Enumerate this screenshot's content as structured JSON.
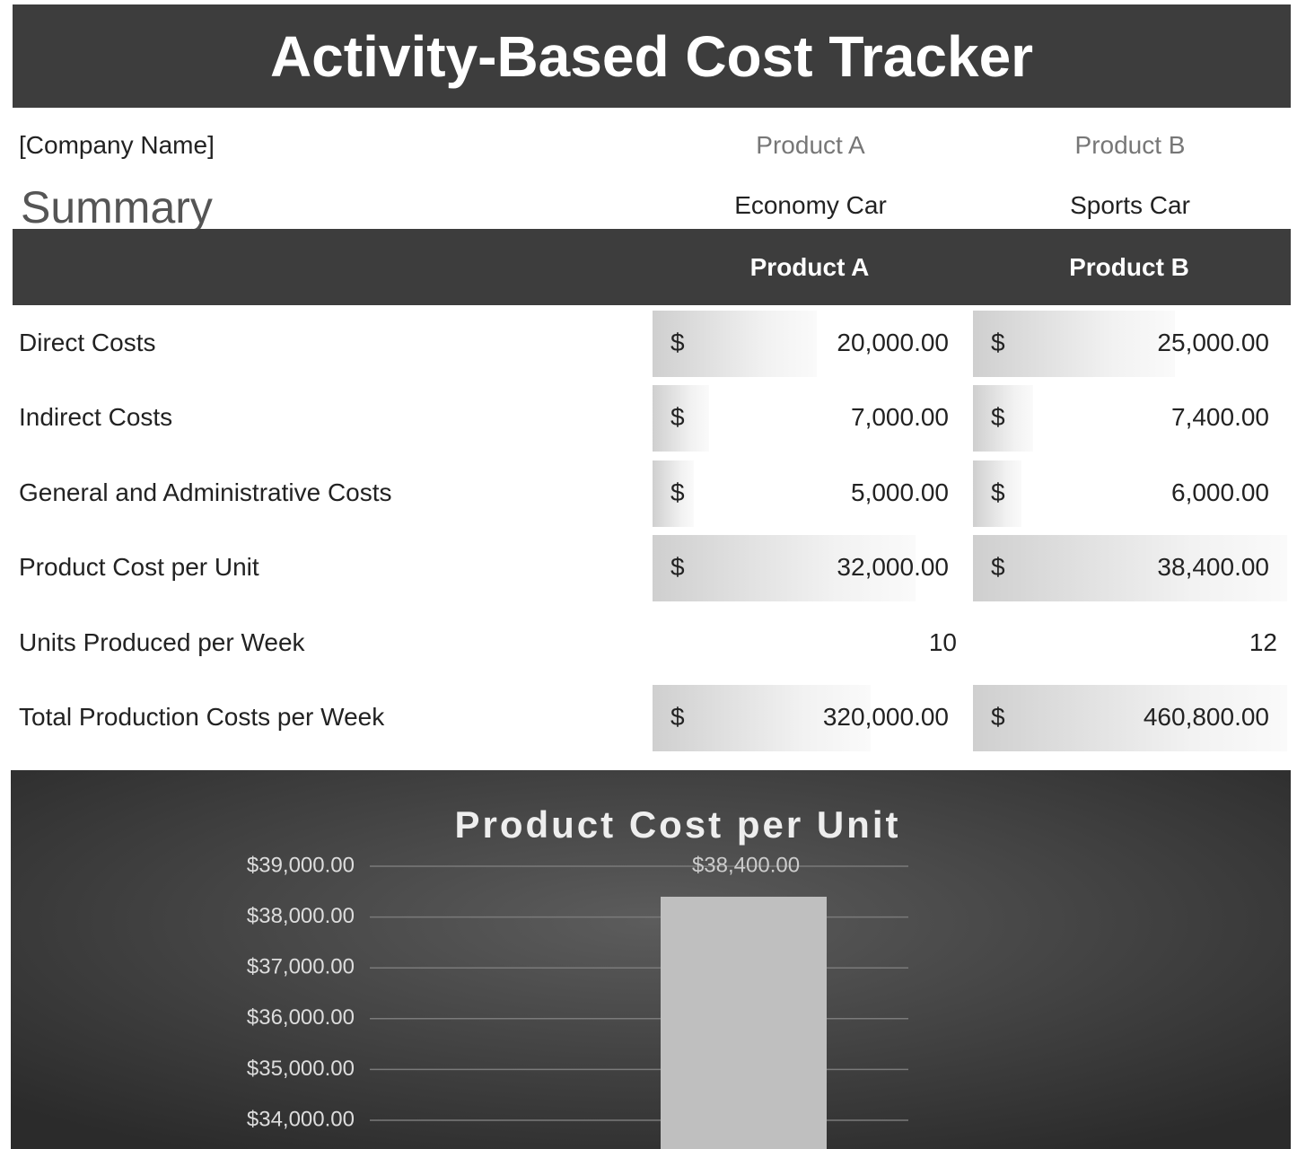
{
  "header": {
    "title": "Activity-Based Cost Tracker"
  },
  "company": "[Company Name]",
  "section": "Summary",
  "products": [
    {
      "label": "Product A",
      "name": "Economy Car"
    },
    {
      "label": "Product B",
      "name": "Sports Car"
    }
  ],
  "table": {
    "columns": [
      null,
      "Product A",
      "Product B"
    ],
    "rows": [
      [
        "Direct Costs",
        "$",
        "20,000.00",
        "$",
        "25,000.00"
      ],
      [
        "Indirect Costs",
        "$",
        "7,000.00",
        "$",
        "7,400.00"
      ],
      [
        "General and Administrative Costs",
        "$",
        "5,000.00",
        "$",
        "6,000.00"
      ],
      [
        "Product Cost per Unit",
        "$",
        "32,000.00",
        "$",
        "38,400.00"
      ],
      [
        "Units Produced per Week",
        null,
        "10",
        null,
        "12"
      ],
      [
        "Total Production Costs per Week",
        "$",
        "320,000.00",
        "$",
        "460,800.00"
      ]
    ]
  },
  "chart_data": {
    "type": "bar",
    "title": "Product Cost per Unit",
    "categories": [
      null
    ],
    "values": [
      38400
    ],
    "value_labels": [
      "$38,400.00"
    ],
    "color": "#bfbfbf",
    "ylim": [
      33435,
      39000
    ],
    "yticks": [
      {
        "value": 34000,
        "label": "$34,000.00"
      },
      {
        "value": 35000,
        "label": "$35,000.00"
      },
      {
        "value": 36000,
        "label": "$36,000.00"
      },
      {
        "value": 37000,
        "label": "$37,000.00"
      },
      {
        "value": 38000,
        "label": "$38,000.00"
      },
      {
        "value": 39000,
        "label": "$39,000.00"
      }
    ],
    "grid": true
  }
}
